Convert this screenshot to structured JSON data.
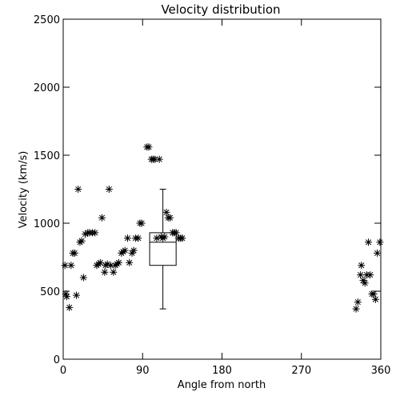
{
  "chart_data": {
    "type": "scatter",
    "title": "Velocity distribution",
    "xlabel": "Angle from north",
    "ylabel": "Velocity (km/s)",
    "xlim": [
      0,
      360
    ],
    "ylim": [
      0,
      2500
    ],
    "xticks": [
      0,
      90,
      180,
      270,
      360
    ],
    "yticks": [
      0,
      500,
      1000,
      1500,
      2000,
      2500
    ],
    "grid": false,
    "marker": "asterisk",
    "points": [
      [
        2,
        690
      ],
      [
        3,
        480
      ],
      [
        4,
        460
      ],
      [
        7,
        380
      ],
      [
        9,
        690
      ],
      [
        11,
        780
      ],
      [
        13,
        780
      ],
      [
        15,
        470
      ],
      [
        17,
        1250
      ],
      [
        19,
        860
      ],
      [
        21,
        870
      ],
      [
        23,
        600
      ],
      [
        25,
        920
      ],
      [
        28,
        930
      ],
      [
        30,
        930
      ],
      [
        33,
        930
      ],
      [
        36,
        930
      ],
      [
        38,
        690
      ],
      [
        40,
        700
      ],
      [
        42,
        710
      ],
      [
        44,
        1040
      ],
      [
        47,
        640
      ],
      [
        48,
        690
      ],
      [
        50,
        700
      ],
      [
        52,
        1250
      ],
      [
        54,
        690
      ],
      [
        57,
        640
      ],
      [
        59,
        690
      ],
      [
        61,
        700
      ],
      [
        63,
        710
      ],
      [
        66,
        780
      ],
      [
        68,
        790
      ],
      [
        70,
        800
      ],
      [
        73,
        890
      ],
      [
        75,
        710
      ],
      [
        78,
        780
      ],
      [
        80,
        800
      ],
      [
        82,
        890
      ],
      [
        85,
        890
      ],
      [
        87,
        1000
      ],
      [
        89,
        1000
      ],
      [
        95,
        1560
      ],
      [
        97,
        1560
      ],
      [
        100,
        1470
      ],
      [
        102,
        1470
      ],
      [
        104,
        1470
      ],
      [
        106,
        890
      ],
      [
        109,
        1470
      ],
      [
        111,
        900
      ],
      [
        113,
        890
      ],
      [
        115,
        900
      ],
      [
        117,
        1080
      ],
      [
        119,
        1040
      ],
      [
        121,
        1040
      ],
      [
        124,
        930
      ],
      [
        126,
        930
      ],
      [
        128,
        930
      ],
      [
        131,
        890
      ],
      [
        133,
        890
      ],
      [
        135,
        890
      ],
      [
        332,
        370
      ],
      [
        334,
        420
      ],
      [
        337,
        620
      ],
      [
        338,
        690
      ],
      [
        340,
        580
      ],
      [
        342,
        560
      ],
      [
        344,
        620
      ],
      [
        346,
        860
      ],
      [
        348,
        620
      ],
      [
        350,
        480
      ],
      [
        352,
        480
      ],
      [
        354,
        440
      ],
      [
        356,
        780
      ],
      [
        359,
        860
      ]
    ],
    "boxplot": {
      "x": 113,
      "min": 370,
      "q1": 690,
      "median": 860,
      "q3": 930,
      "max": 1250,
      "half_width": 15
    }
  }
}
